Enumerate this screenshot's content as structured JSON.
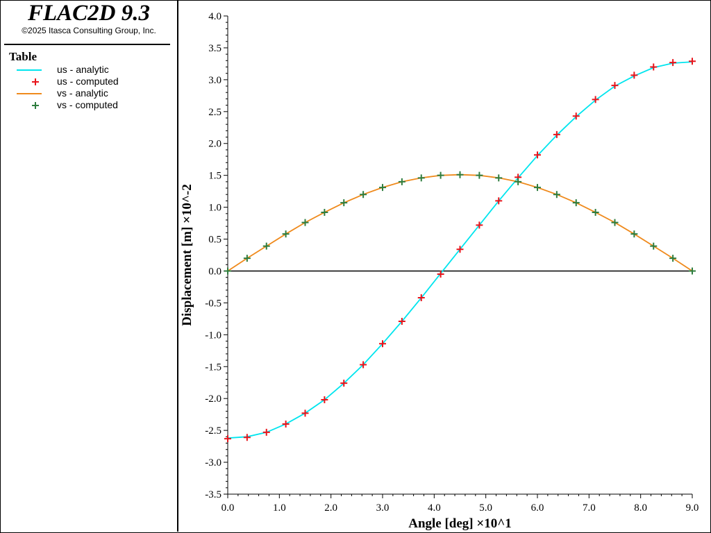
{
  "app": {
    "title": "FLAC2D 9.3",
    "copyright": "©2025 Itasca Consulting Group, Inc."
  },
  "legend": {
    "heading": "Table",
    "items": [
      {
        "label": "us - analytic",
        "kind": "line",
        "color": "#00e5ee"
      },
      {
        "label": "us - computed",
        "kind": "plus",
        "color": "#e8141b"
      },
      {
        "label": "vs - analytic",
        "kind": "line",
        "color": "#ef8a1c"
      },
      {
        "label": "vs - computed",
        "kind": "plus",
        "color": "#2e7d3e"
      }
    ]
  },
  "chart_data": {
    "type": "line",
    "xlabel": "Angle [deg] ×10^1",
    "ylabel": "Displacement [m] ×10^-2",
    "xlim": [
      0,
      9
    ],
    "ylim": [
      -3.5,
      4
    ],
    "xticks": [
      "0.0",
      "1.0",
      "2.0",
      "3.0",
      "4.0",
      "5.0",
      "6.0",
      "7.0",
      "8.0",
      "9.0"
    ],
    "yticks": [
      "4.0",
      "3.5",
      "3.0",
      "2.5",
      "2.0",
      "1.5",
      "1.0",
      "0.5",
      "0.0",
      "-0.5",
      "-1.0",
      "-1.5",
      "-2.0",
      "-2.5",
      "-3.0",
      "-3.5"
    ],
    "grid": false,
    "zero_line": true,
    "series": [
      {
        "name": "us - analytic",
        "style": "line",
        "color": "#00e5ee",
        "x": [
          0,
          0.375,
          0.75,
          1.125,
          1.5,
          1.875,
          2.25,
          2.625,
          3,
          3.375,
          3.75,
          4.125,
          4.5,
          4.875,
          5.25,
          5.625,
          6,
          6.375,
          6.75,
          7.125,
          7.5,
          7.875,
          8.25,
          8.625,
          9
        ],
        "y": [
          -2.62,
          -2.6,
          -2.53,
          -2.4,
          -2.23,
          -2.02,
          -1.76,
          -1.47,
          -1.14,
          -0.79,
          -0.42,
          -0.04,
          0.34,
          0.72,
          1.1,
          1.46,
          1.81,
          2.13,
          2.42,
          2.68,
          2.9,
          3.06,
          3.19,
          3.26,
          3.28
        ]
      },
      {
        "name": "us - computed",
        "style": "plus",
        "color": "#e8141b",
        "x": [
          0,
          0.375,
          0.75,
          1.125,
          1.5,
          1.875,
          2.25,
          2.625,
          3,
          3.375,
          3.75,
          4.125,
          4.5,
          4.875,
          5.25,
          5.625,
          6,
          6.375,
          6.75,
          7.125,
          7.5,
          7.875,
          8.25,
          8.625,
          9
        ],
        "y": [
          -2.63,
          -2.61,
          -2.53,
          -2.4,
          -2.23,
          -2.02,
          -1.76,
          -1.47,
          -1.14,
          -0.79,
          -0.42,
          -0.05,
          0.34,
          0.72,
          1.1,
          1.47,
          1.82,
          2.14,
          2.43,
          2.69,
          2.91,
          3.07,
          3.2,
          3.27,
          3.29
        ]
      },
      {
        "name": "vs - analytic",
        "style": "line",
        "color": "#ef8a1c",
        "x": [
          0,
          0.375,
          0.75,
          1.125,
          1.5,
          1.875,
          2.25,
          2.625,
          3,
          3.375,
          3.75,
          4.125,
          4.5,
          4.875,
          5.25,
          5.625,
          6,
          6.375,
          6.75,
          7.125,
          7.5,
          7.875,
          8.25,
          8.625,
          9
        ],
        "y": [
          0,
          0.2,
          0.39,
          0.58,
          0.76,
          0.92,
          1.07,
          1.2,
          1.31,
          1.4,
          1.46,
          1.5,
          1.51,
          1.5,
          1.46,
          1.4,
          1.31,
          1.2,
          1.07,
          0.92,
          0.76,
          0.58,
          0.39,
          0.2,
          0
        ]
      },
      {
        "name": "vs - computed",
        "style": "plus",
        "color": "#2e7d3e",
        "x": [
          0,
          0.375,
          0.75,
          1.125,
          1.5,
          1.875,
          2.25,
          2.625,
          3,
          3.375,
          3.75,
          4.125,
          4.5,
          4.875,
          5.25,
          5.625,
          6,
          6.375,
          6.75,
          7.125,
          7.5,
          7.875,
          8.25,
          8.625,
          9
        ],
        "y": [
          0,
          0.2,
          0.39,
          0.58,
          0.76,
          0.92,
          1.07,
          1.2,
          1.31,
          1.4,
          1.46,
          1.5,
          1.51,
          1.5,
          1.46,
          1.4,
          1.31,
          1.2,
          1.07,
          0.92,
          0.76,
          0.58,
          0.39,
          0.2,
          0
        ]
      }
    ]
  }
}
